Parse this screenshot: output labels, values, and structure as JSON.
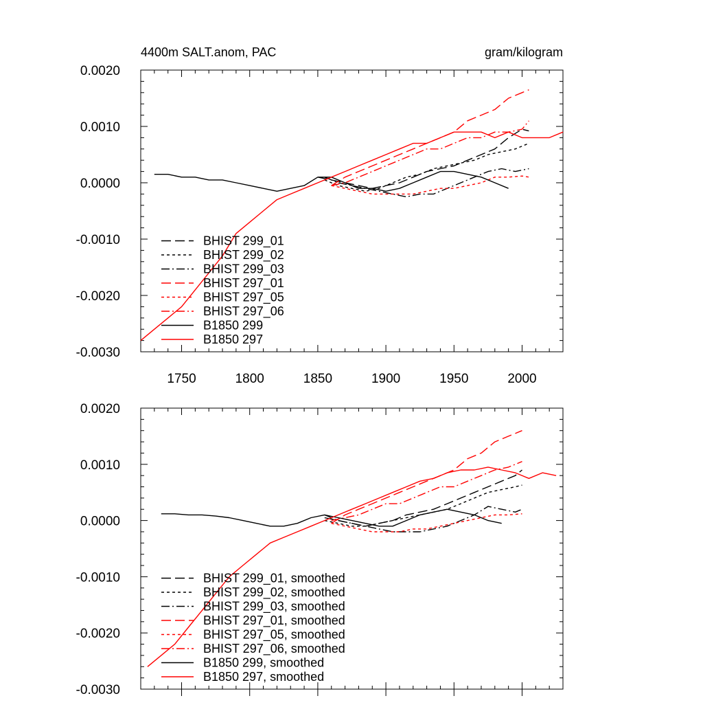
{
  "page": {
    "left_title": "4400m SALT.anom, PAC",
    "right_title": "gram/kilogram"
  },
  "chart_data": [
    {
      "type": "line",
      "title": "4400m SALT.anom, PAC",
      "units": "gram/kilogram",
      "xlim": [
        1720,
        2030
      ],
      "ylim": [
        -0.003,
        0.002
      ],
      "xticks": [
        "1750",
        "1800",
        "1850",
        "1900",
        "1950",
        "2000"
      ],
      "yticks": [
        "0.0020",
        "0.0010",
        "0.0000",
        "-0.0010",
        "-0.0020",
        "-0.0030"
      ],
      "legend_position": "bottom-left",
      "series": [
        {
          "name": "BHIST 299_01",
          "color": "#000000",
          "dash": "long-dash",
          "x": [
            1850,
            1860,
            1870,
            1880,
            1890,
            1900,
            1910,
            1920,
            1930,
            1940,
            1950,
            1960,
            1970,
            1980,
            1990,
            2000,
            2005
          ],
          "y": [
            0.0001,
            5e-05,
            0.0,
            -5e-05,
            -0.0001,
            -5e-05,
            0.0,
            0.0001,
            0.0002,
            0.00025,
            0.0003,
            0.0004,
            0.0005,
            0.0006,
            0.0008,
            0.00095,
            0.00092
          ]
        },
        {
          "name": "BHIST 299_02",
          "color": "#000000",
          "dash": "short-dash",
          "x": [
            1855,
            1865,
            1875,
            1885,
            1895,
            1905,
            1915,
            1925,
            1935,
            1945,
            1955,
            1965,
            1975,
            1985,
            1995,
            2005
          ],
          "y": [
            5e-05,
            -5e-05,
            -0.0001,
            -0.00015,
            -0.0001,
            0.0,
            0.0001,
            0.00015,
            0.00025,
            0.0003,
            0.00035,
            0.0004,
            0.0005,
            0.00055,
            0.0006,
            0.0007
          ]
        },
        {
          "name": "BHIST 299_03",
          "color": "#000000",
          "dash": "dash-dot",
          "x": [
            1855,
            1865,
            1875,
            1885,
            1895,
            1905,
            1915,
            1925,
            1935,
            1945,
            1955,
            1965,
            1975,
            1985,
            1995,
            2005
          ],
          "y": [
            0.0001,
            0.0,
            -5e-05,
            -0.0001,
            -0.00015,
            -0.0002,
            -0.00025,
            -0.0002,
            -0.0002,
            -0.0001,
            0.0,
            0.0001,
            0.0002,
            0.00025,
            0.0002,
            0.00025
          ]
        },
        {
          "name": "BHIST 297_01",
          "color": "#ff0000",
          "dash": "long-dash",
          "x": [
            1860,
            1870,
            1880,
            1890,
            1900,
            1910,
            1920,
            1930,
            1940,
            1950,
            1960,
            1970,
            1980,
            1990,
            2000,
            2005
          ],
          "y": [
            -5e-05,
            0.0001,
            0.0002,
            0.0003,
            0.0004,
            0.0005,
            0.0006,
            0.0007,
            0.0008,
            0.0009,
            0.0011,
            0.0012,
            0.0013,
            0.0015,
            0.0016,
            0.00165
          ]
        },
        {
          "name": "BHIST 297_05",
          "color": "#ff0000",
          "dash": "short-dash",
          "x": [
            1860,
            1870,
            1880,
            1890,
            1900,
            1910,
            1920,
            1930,
            1940,
            1950,
            1960,
            1970,
            1980,
            1990,
            2000,
            2005
          ],
          "y": [
            -5e-05,
            -0.0001,
            -0.00015,
            -0.0002,
            -0.0002,
            -0.0002,
            -0.0002,
            -0.00015,
            -0.0001,
            -0.0001,
            -5e-05,
            0.0,
            0.0001,
            0.0001,
            0.00012,
            0.0001
          ]
        },
        {
          "name": "BHIST 297_06",
          "color": "#ff0000",
          "dash": "dash-dot",
          "x": [
            1860,
            1870,
            1880,
            1890,
            1900,
            1910,
            1920,
            1930,
            1940,
            1950,
            1960,
            1970,
            1980,
            1990,
            2000,
            2005
          ],
          "y": [
            -5e-05,
            0.0,
            0.0001,
            0.0002,
            0.0003,
            0.0004,
            0.0005,
            0.0006,
            0.0006,
            0.0007,
            0.0008,
            0.0008,
            0.0009,
            0.0009,
            0.00095,
            0.0011
          ]
        },
        {
          "name": "B1850 299",
          "color": "#000000",
          "dash": "solid",
          "x": [
            1730,
            1740,
            1750,
            1760,
            1770,
            1780,
            1790,
            1800,
            1810,
            1820,
            1830,
            1840,
            1850,
            1860,
            1870,
            1880,
            1890,
            1900,
            1910,
            1920,
            1930,
            1940,
            1950,
            1960,
            1970,
            1980,
            1990
          ],
          "y": [
            0.00015,
            0.00015,
            0.0001,
            0.0001,
            5e-05,
            5e-05,
            0.0,
            -5e-05,
            -0.0001,
            -0.00015,
            -0.0001,
            -5e-05,
            0.0001,
            0.0001,
            0.0,
            -0.0001,
            -0.0001,
            -0.00015,
            -0.0001,
            0.0,
            0.0001,
            0.0002,
            0.0002,
            0.00015,
            0.0001,
            0.0,
            -0.0001
          ]
        },
        {
          "name": "B1850 297",
          "color": "#ff0000",
          "dash": "solid",
          "x": [
            1720,
            1730,
            1740,
            1750,
            1760,
            1770,
            1780,
            1790,
            1800,
            1810,
            1820,
            1830,
            1840,
            1850,
            1860,
            1870,
            1880,
            1890,
            1900,
            1910,
            1920,
            1930,
            1940,
            1950,
            1960,
            1970,
            1980,
            1990,
            2000,
            2010,
            2020,
            2030
          ],
          "y": [
            -0.0028,
            -0.0026,
            -0.0024,
            -0.0022,
            -0.0019,
            -0.0016,
            -0.0013,
            -0.0009,
            -0.0007,
            -0.0005,
            -0.0003,
            -0.0002,
            -0.0001,
            0.0,
            0.0001,
            0.0002,
            0.0003,
            0.0004,
            0.0005,
            0.0006,
            0.0007,
            0.0007,
            0.0008,
            0.0009,
            0.0009,
            0.0009,
            0.0008,
            0.0009,
            0.0008,
            0.0008,
            0.0008,
            0.0009
          ]
        }
      ]
    },
    {
      "type": "line",
      "xlim": [
        1720,
        2030
      ],
      "ylim": [
        -0.003,
        0.002
      ],
      "xticks": [],
      "yticks": [
        "0.0020",
        "0.0010",
        "0.0000",
        "-0.0010",
        "-0.0020",
        "-0.0030"
      ],
      "legend_position": "bottom-left",
      "series": [
        {
          "name": "BHIST 299_01, smoothed",
          "color": "#000000",
          "dash": "long-dash",
          "x": [
            1855,
            1865,
            1875,
            1885,
            1895,
            1905,
            1915,
            1925,
            1935,
            1945,
            1955,
            1965,
            1975,
            1985,
            1995,
            2000
          ],
          "y": [
            5e-05,
            0.0,
            -5e-05,
            -0.0001,
            -5e-05,
            0.0,
            0.0001,
            0.00015,
            0.0002,
            0.0003,
            0.0004,
            0.0005,
            0.0006,
            0.0007,
            0.0008,
            0.0009
          ]
        },
        {
          "name": "BHIST 299_02, smoothed",
          "color": "#000000",
          "dash": "short-dash",
          "x": [
            1855,
            1865,
            1875,
            1885,
            1895,
            1905,
            1915,
            1925,
            1935,
            1945,
            1955,
            1965,
            1975,
            1985,
            1995,
            2000
          ],
          "y": [
            0.0,
            -5e-05,
            -0.0001,
            -0.0001,
            -5e-05,
            0.0,
            5e-05,
            0.0001,
            0.00015,
            0.0002,
            0.0003,
            0.0004,
            0.0005,
            0.00055,
            0.0006,
            0.00063
          ]
        },
        {
          "name": "BHIST 299_03, smoothed",
          "color": "#000000",
          "dash": "dash-dot",
          "x": [
            1855,
            1865,
            1875,
            1885,
            1895,
            1905,
            1915,
            1925,
            1935,
            1945,
            1955,
            1965,
            1975,
            1985,
            1995,
            2000
          ],
          "y": [
            0.0001,
            0.0,
            -5e-05,
            -0.0001,
            -0.00015,
            -0.0002,
            -0.0002,
            -0.0002,
            -0.00015,
            -0.0001,
            0.0,
            0.0001,
            0.00025,
            0.0002,
            0.00015,
            0.0002
          ]
        },
        {
          "name": "BHIST 297_01, smoothed",
          "color": "#ff0000",
          "dash": "long-dash",
          "x": [
            1860,
            1870,
            1880,
            1890,
            1900,
            1910,
            1920,
            1930,
            1940,
            1950,
            1960,
            1970,
            1980,
            1990,
            2000
          ],
          "y": [
            -5e-05,
            0.0001,
            0.0002,
            0.0003,
            0.0004,
            0.0005,
            0.0006,
            0.0007,
            0.0008,
            0.0009,
            0.0011,
            0.0012,
            0.0014,
            0.0015,
            0.0016
          ]
        },
        {
          "name": "BHIST 297_05, smoothed",
          "color": "#ff0000",
          "dash": "short-dash",
          "x": [
            1860,
            1870,
            1880,
            1890,
            1900,
            1910,
            1920,
            1930,
            1940,
            1950,
            1960,
            1970,
            1980,
            1990,
            2000
          ],
          "y": [
            -5e-05,
            -0.0001,
            -0.00015,
            -0.0002,
            -0.0002,
            -0.0002,
            -0.00015,
            -0.00015,
            -0.0001,
            -5e-05,
            0.0,
            5e-05,
            0.0001,
            0.0001,
            0.00012
          ]
        },
        {
          "name": "BHIST 297_06, smoothed",
          "color": "#ff0000",
          "dash": "dash-dot",
          "x": [
            1860,
            1870,
            1880,
            1890,
            1900,
            1910,
            1920,
            1930,
            1940,
            1950,
            1960,
            1970,
            1980,
            1990,
            2000
          ],
          "y": [
            0.0,
            5e-05,
            0.0001,
            0.0002,
            0.0003,
            0.0003,
            0.0004,
            0.0005,
            0.0006,
            0.0006,
            0.0007,
            0.0008,
            0.0009,
            0.00095,
            0.00105
          ]
        },
        {
          "name": "B1850 299, smoothed",
          "color": "#000000",
          "dash": "solid",
          "x": [
            1735,
            1745,
            1755,
            1765,
            1775,
            1785,
            1795,
            1805,
            1815,
            1825,
            1835,
            1845,
            1855,
            1865,
            1875,
            1885,
            1895,
            1905,
            1915,
            1925,
            1935,
            1945,
            1955,
            1965,
            1975,
            1985
          ],
          "y": [
            0.00012,
            0.00012,
            0.0001,
            0.0001,
            8e-05,
            5e-05,
            0.0,
            -5e-05,
            -0.0001,
            -0.0001,
            -5e-05,
            5e-05,
            0.0001,
            5e-05,
            0.0,
            -5e-05,
            -0.0001,
            -0.0001,
            0.0,
            0.0001,
            0.00015,
            0.0002,
            0.00015,
            0.0001,
            0.0,
            -5e-05
          ]
        },
        {
          "name": "B1850 297, smoothed",
          "color": "#ff0000",
          "dash": "solid",
          "x": [
            1725,
            1735,
            1745,
            1755,
            1765,
            1775,
            1785,
            1795,
            1805,
            1815,
            1825,
            1835,
            1845,
            1855,
            1865,
            1875,
            1885,
            1895,
            1905,
            1915,
            1925,
            1935,
            1945,
            1955,
            1965,
            1975,
            1985,
            1995,
            2005,
            2015,
            2025
          ],
          "y": [
            -0.0026,
            -0.0024,
            -0.0022,
            -0.0019,
            -0.0016,
            -0.0013,
            -0.001,
            -0.0008,
            -0.0006,
            -0.0004,
            -0.0003,
            -0.0002,
            -0.0001,
            0.0,
            0.0001,
            0.0002,
            0.0003,
            0.0004,
            0.0005,
            0.0006,
            0.0007,
            0.00075,
            0.00085,
            0.0009,
            0.0009,
            0.00095,
            0.0009,
            0.00085,
            0.00075,
            0.00085,
            0.0008
          ]
        }
      ]
    }
  ]
}
